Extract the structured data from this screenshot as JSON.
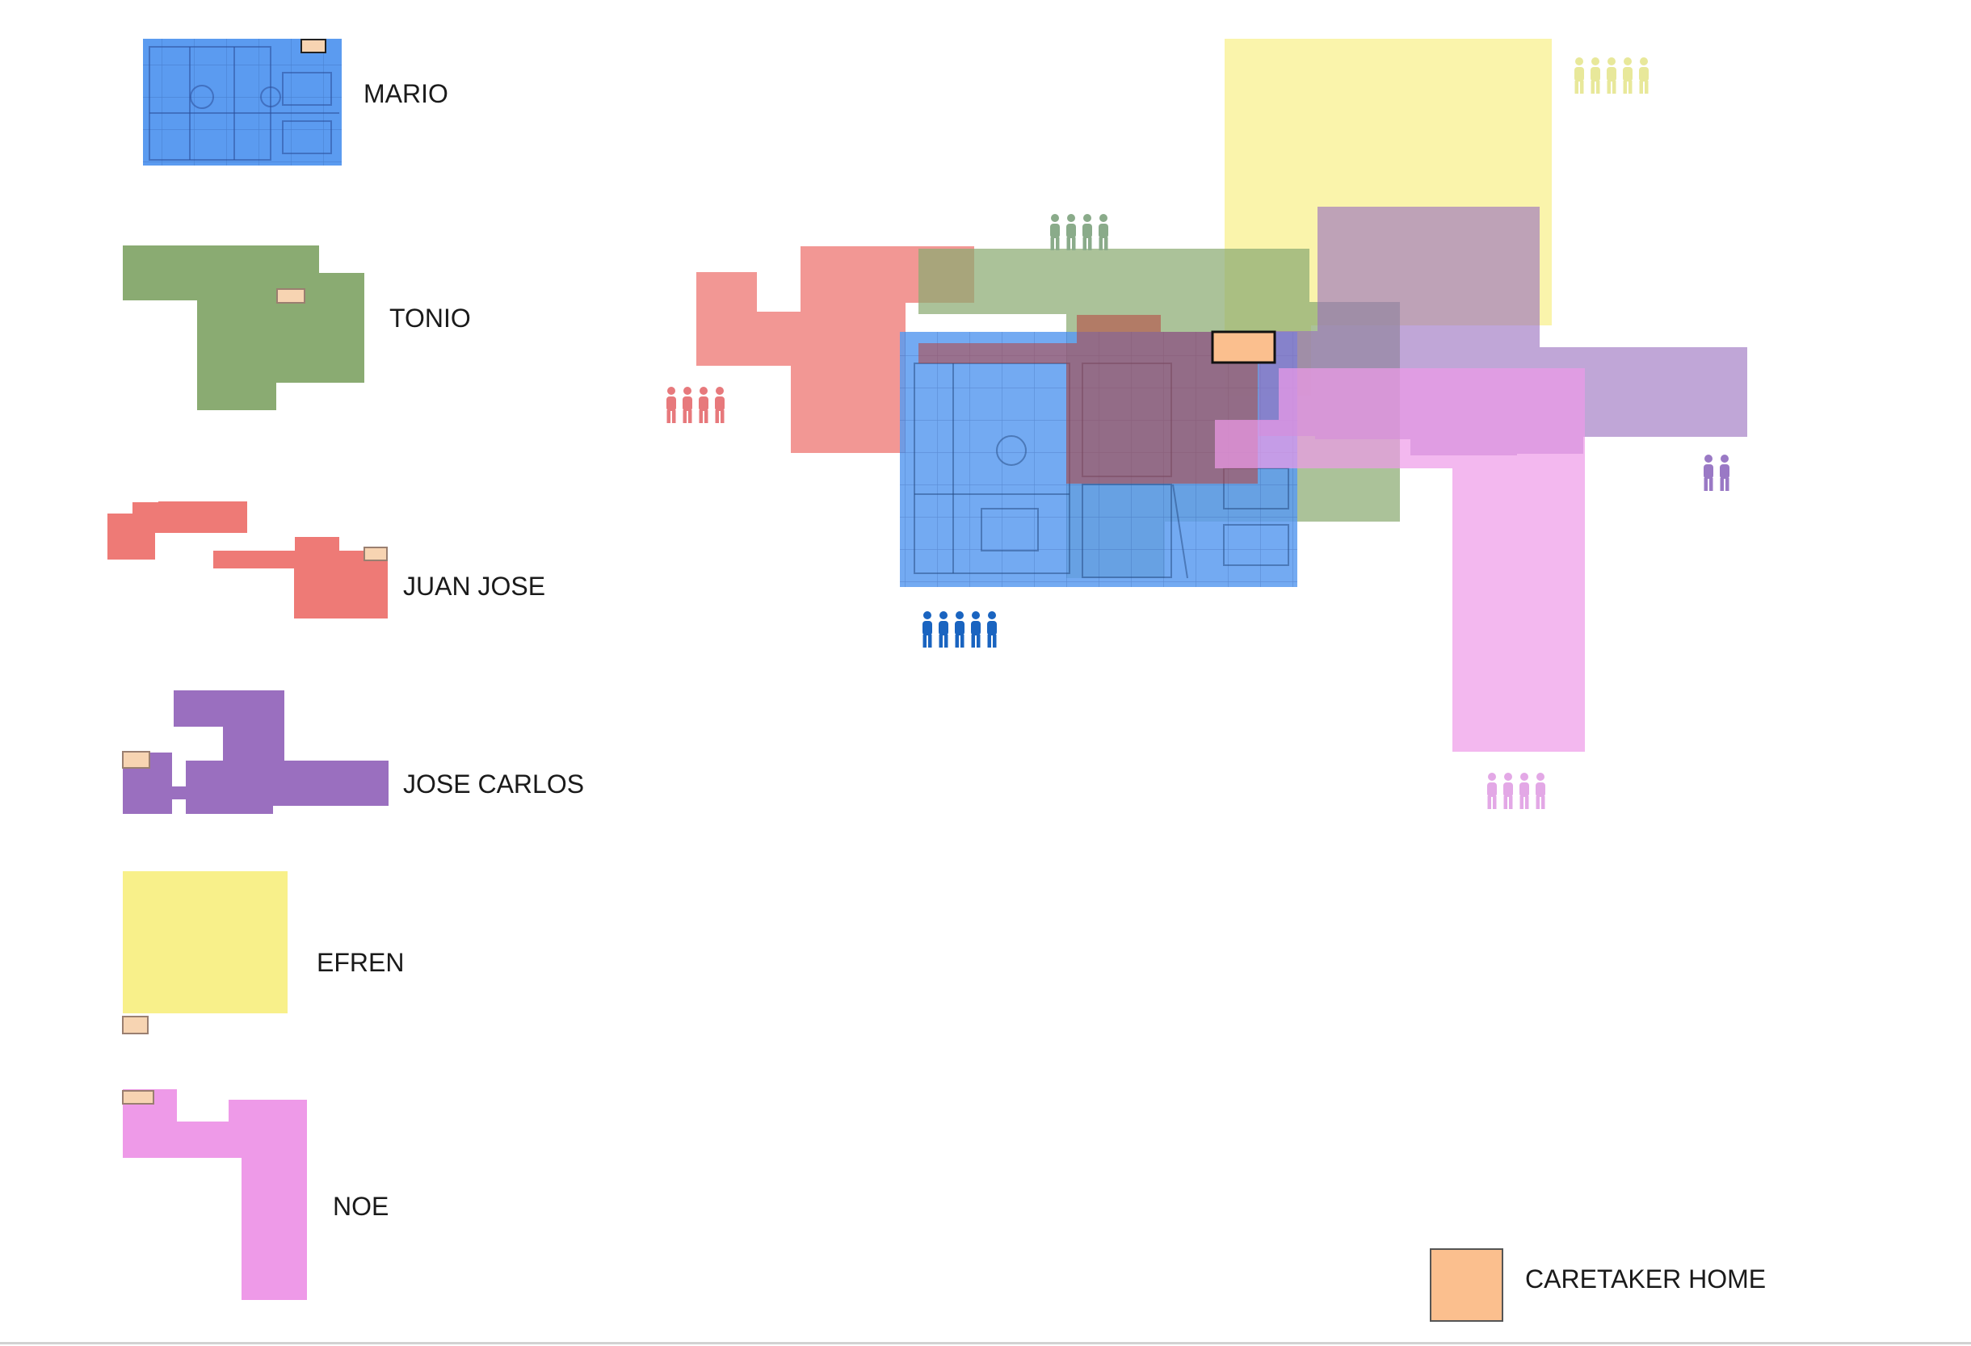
{
  "colors": {
    "mario": "#5b9bf0",
    "tonio": "#8aab72",
    "juan_jose": "#ee7a76",
    "jose_carlos": "#9a6fbf",
    "efren": "#f8f08a",
    "noe": "#ee9ae8",
    "caretaker": "#fbbf8e",
    "mario_people": "#1a64c0",
    "tonio_people": "#8aab8a",
    "juan_jose_people": "#e7797c",
    "jose_carlos_people": "#9a79c5",
    "efren_people": "#e8e89a",
    "noe_people": "#e3a8e6"
  },
  "legend": {
    "mario": "MARIO",
    "tonio": "TONIO",
    "juan_jose": "JUAN JOSE",
    "jose_carlos": "JOSE CARLOS",
    "efren": "EFREN",
    "noe": "NOE"
  },
  "key": {
    "caretaker_label": "CARETAKER HOME"
  },
  "people_counts": {
    "mario": 5,
    "tonio": 4,
    "juan_jose": 4,
    "jose_carlos": 2,
    "efren": 5,
    "noe": 4
  },
  "icons": {
    "people": "person-icon",
    "floor_plan": "floor-plan-icon",
    "caretaker": "caretaker-home-icon"
  }
}
